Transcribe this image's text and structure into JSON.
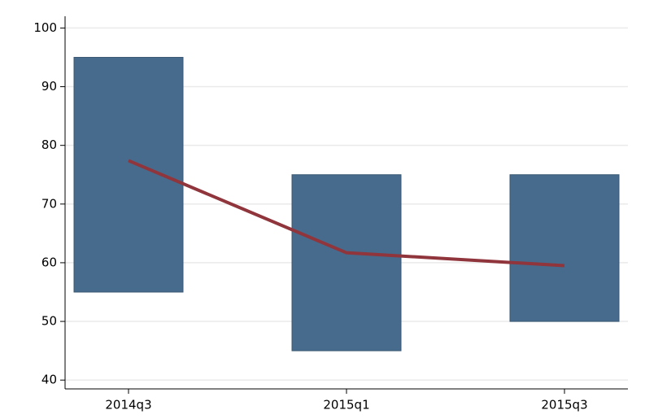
{
  "chart_data": {
    "type": "range_bar_line",
    "categories": [
      "2014q3",
      "2015q1",
      "2015q3"
    ],
    "series": [
      {
        "type": "range_bar",
        "color": "#476b8c",
        "low": [
          55,
          45,
          50
        ],
        "high": [
          95,
          75,
          75
        ]
      },
      {
        "type": "line",
        "color": "#90353b",
        "values": [
          77.4,
          61.7,
          59.5
        ]
      }
    ],
    "ylim": [
      38.5,
      102
    ],
    "yticks": [
      40,
      50,
      60,
      70,
      80,
      90,
      100
    ],
    "grid": true
  }
}
